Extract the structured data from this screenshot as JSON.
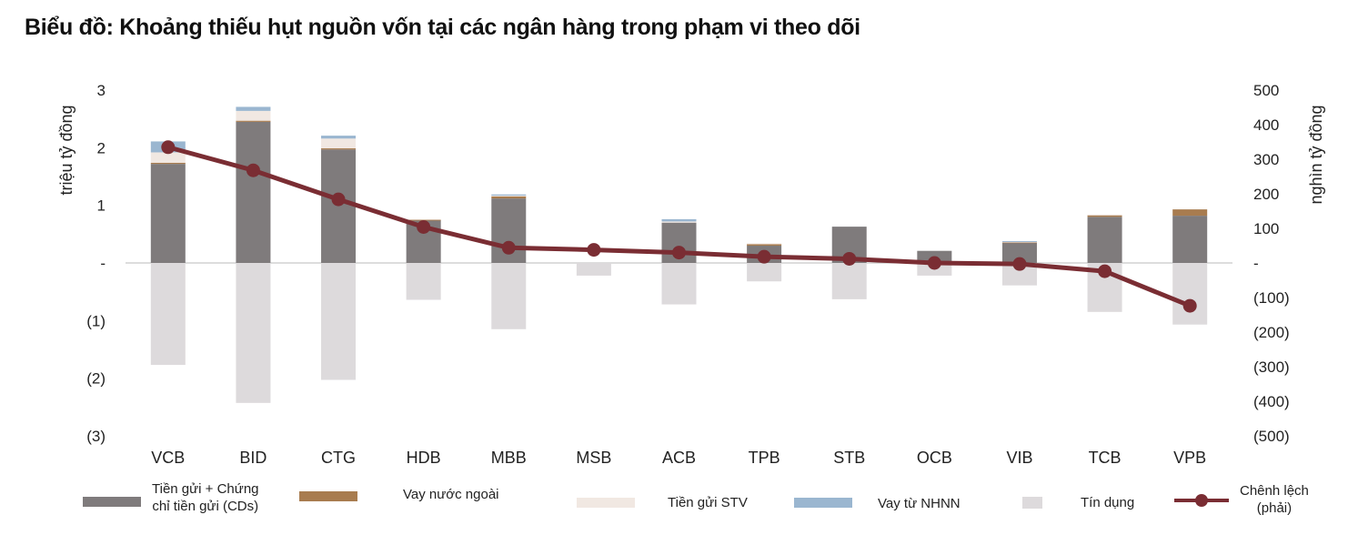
{
  "title": "Biểu đồ: Khoảng thiếu hụt nguồn vốn tại các ngân hàng trong phạm vi theo dõi",
  "colors": {
    "deposits": "#7f7b7c",
    "foreign_loans": "#a87c4f",
    "interbank": "#f1e8e2",
    "sbv_loans": "#9ab6d0",
    "credit": "#dddadc",
    "gap_line": "#7a2d33",
    "axis": "#bbbbbb"
  },
  "legend": {
    "deposits": "Tiền gửi + Chứng chỉ tiền gửi (CDs)",
    "deposits_line1": "Tiền gửi + Chứng",
    "deposits_line2": "chỉ tiền gửi (CDs)",
    "foreign_loans": "Vay nước ngoài",
    "interbank": "Tiền gửi STV",
    "sbv_loans": "Vay từ NHNN",
    "credit": "Tín dụng",
    "gap": "Chênh lệch (phải)",
    "gap_line1": "Chênh lệch",
    "gap_line2": "(phải)"
  },
  "chart_data": {
    "type": "bar",
    "title": "Biểu đồ: Khoảng thiếu hụt nguồn vốn tại các ngân hàng trong phạm vi theo dõi",
    "categories": [
      "VCB",
      "BID",
      "CTG",
      "HDB",
      "MBB",
      "MSB",
      "ACB",
      "TPB",
      "STB",
      "OCB",
      "VIB",
      "TCB",
      "VPB"
    ],
    "ylabel_left": "triệu tỷ đồng",
    "ylabel_right": "nghìn tỷ đồng",
    "ylim_left": [
      -3,
      3
    ],
    "ylim_right": [
      -500,
      500
    ],
    "yticks_left": [
      "3",
      "2",
      "1",
      "-",
      "(1)",
      "(2)",
      "(3)"
    ],
    "yticks_right": [
      "500",
      "400",
      "300",
      "200",
      "100",
      "-",
      "(100)",
      "(200)",
      "(300)",
      "(400)",
      "(500)"
    ],
    "stacked": true,
    "series": [
      {
        "name": "Tiền gửi + Chứng chỉ tiền gửi (CDs)",
        "axis": "left",
        "values": [
          1.72,
          2.45,
          1.97,
          0.74,
          1.12,
          0.0,
          0.7,
          0.3,
          0.63,
          0.21,
          0.35,
          0.8,
          0.82
        ]
      },
      {
        "name": "Vay nước ngoài",
        "axis": "left",
        "values": [
          0.02,
          0.02,
          0.02,
          0.01,
          0.04,
          0.0,
          0.0,
          0.03,
          0.0,
          0.0,
          0.01,
          0.03,
          0.11
        ]
      },
      {
        "name": "Tiền gửi STV",
        "axis": "left",
        "values": [
          0.18,
          0.17,
          0.17,
          0.0,
          0.01,
          0.0,
          0.02,
          0.01,
          0.0,
          0.0,
          0.01,
          0.01,
          0.0
        ]
      },
      {
        "name": "Vay từ NHNN",
        "axis": "left",
        "values": [
          0.19,
          0.07,
          0.05,
          0.0,
          0.02,
          0.0,
          0.04,
          0.0,
          0.0,
          0.0,
          0.01,
          0.0,
          0.0
        ]
      },
      {
        "name": "Tín dụng",
        "axis": "left",
        "values": [
          -1.77,
          -2.43,
          -2.03,
          -0.64,
          -1.15,
          -0.22,
          -0.72,
          -0.32,
          -0.63,
          -0.22,
          -0.39,
          -0.85,
          -1.07
        ]
      },
      {
        "name": "Chênh lệch (phải)",
        "axis": "right",
        "type": "line",
        "values": [
          335,
          268,
          184,
          104,
          44,
          38,
          30,
          18,
          12,
          0,
          -3,
          -24,
          -124
        ]
      }
    ]
  }
}
